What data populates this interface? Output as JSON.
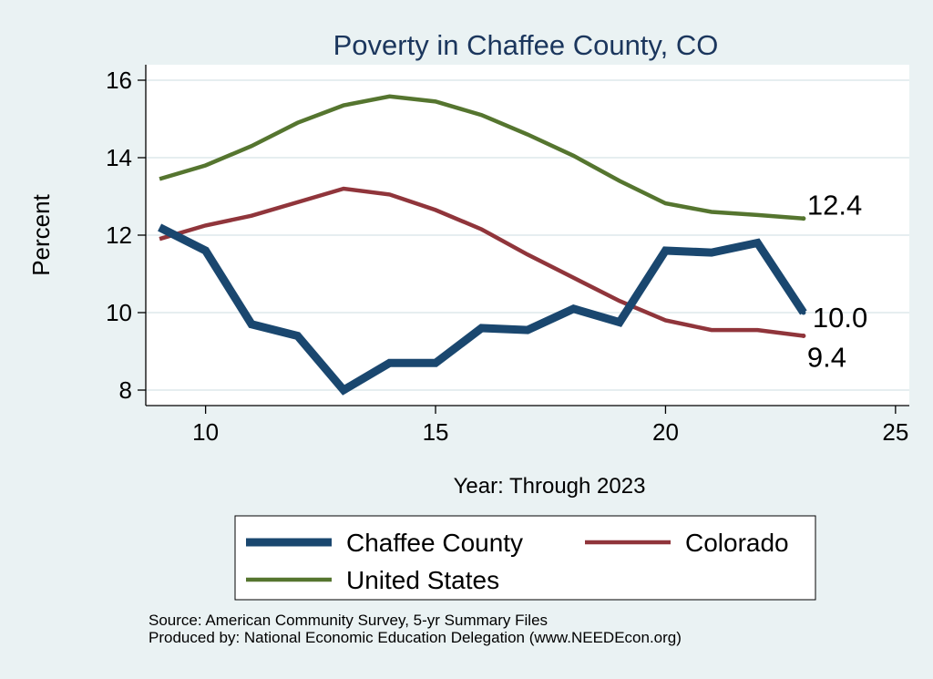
{
  "chart_data": {
    "type": "line",
    "title": "Poverty in Chaffee County, CO",
    "xlabel": "Year: Through 2023",
    "ylabel": "Percent",
    "xlim": [
      8.7,
      25.3
    ],
    "ylim": [
      7.6,
      16.4
    ],
    "x_ticks": [
      10,
      15,
      20,
      25
    ],
    "y_ticks": [
      8,
      10,
      12,
      14,
      16
    ],
    "grid": true,
    "legend_position": "bottom",
    "series": [
      {
        "name": "Chaffee County",
        "color": "#1a476f",
        "style": "thick",
        "end_label": "10.0",
        "x": [
          9,
          10,
          11,
          12,
          13,
          14,
          15,
          16,
          17,
          18,
          19,
          20,
          21,
          22,
          23
        ],
        "values": [
          12.2,
          11.6,
          9.7,
          9.4,
          8.0,
          8.7,
          8.7,
          9.6,
          9.55,
          10.1,
          9.75,
          11.6,
          11.55,
          11.8,
          10.0
        ]
      },
      {
        "name": "Colorado",
        "color": "#90353b",
        "style": "normal",
        "end_label": "9.4",
        "x": [
          9,
          10,
          11,
          12,
          13,
          14,
          15,
          16,
          17,
          18,
          19,
          20,
          21,
          22,
          23
        ],
        "values": [
          11.9,
          12.25,
          12.5,
          12.85,
          13.2,
          13.05,
          12.65,
          12.15,
          11.5,
          10.9,
          10.3,
          9.8,
          9.55,
          9.55,
          9.4
        ]
      },
      {
        "name": "United States",
        "color": "#55752f",
        "style": "normal",
        "end_label": "12.4",
        "x": [
          9,
          10,
          11,
          12,
          13,
          14,
          15,
          16,
          17,
          18,
          19,
          20,
          21,
          22,
          23
        ],
        "values": [
          13.45,
          13.8,
          14.3,
          14.9,
          15.35,
          15.58,
          15.45,
          15.1,
          14.6,
          14.05,
          13.4,
          12.82,
          12.6,
          12.52,
          12.43
        ]
      }
    ]
  },
  "source_note": "Source: American Community Survey, 5-yr Summary Files",
  "producer_note": "Produced by: National Economic Education Delegation (www.NEEDEcon.org)"
}
